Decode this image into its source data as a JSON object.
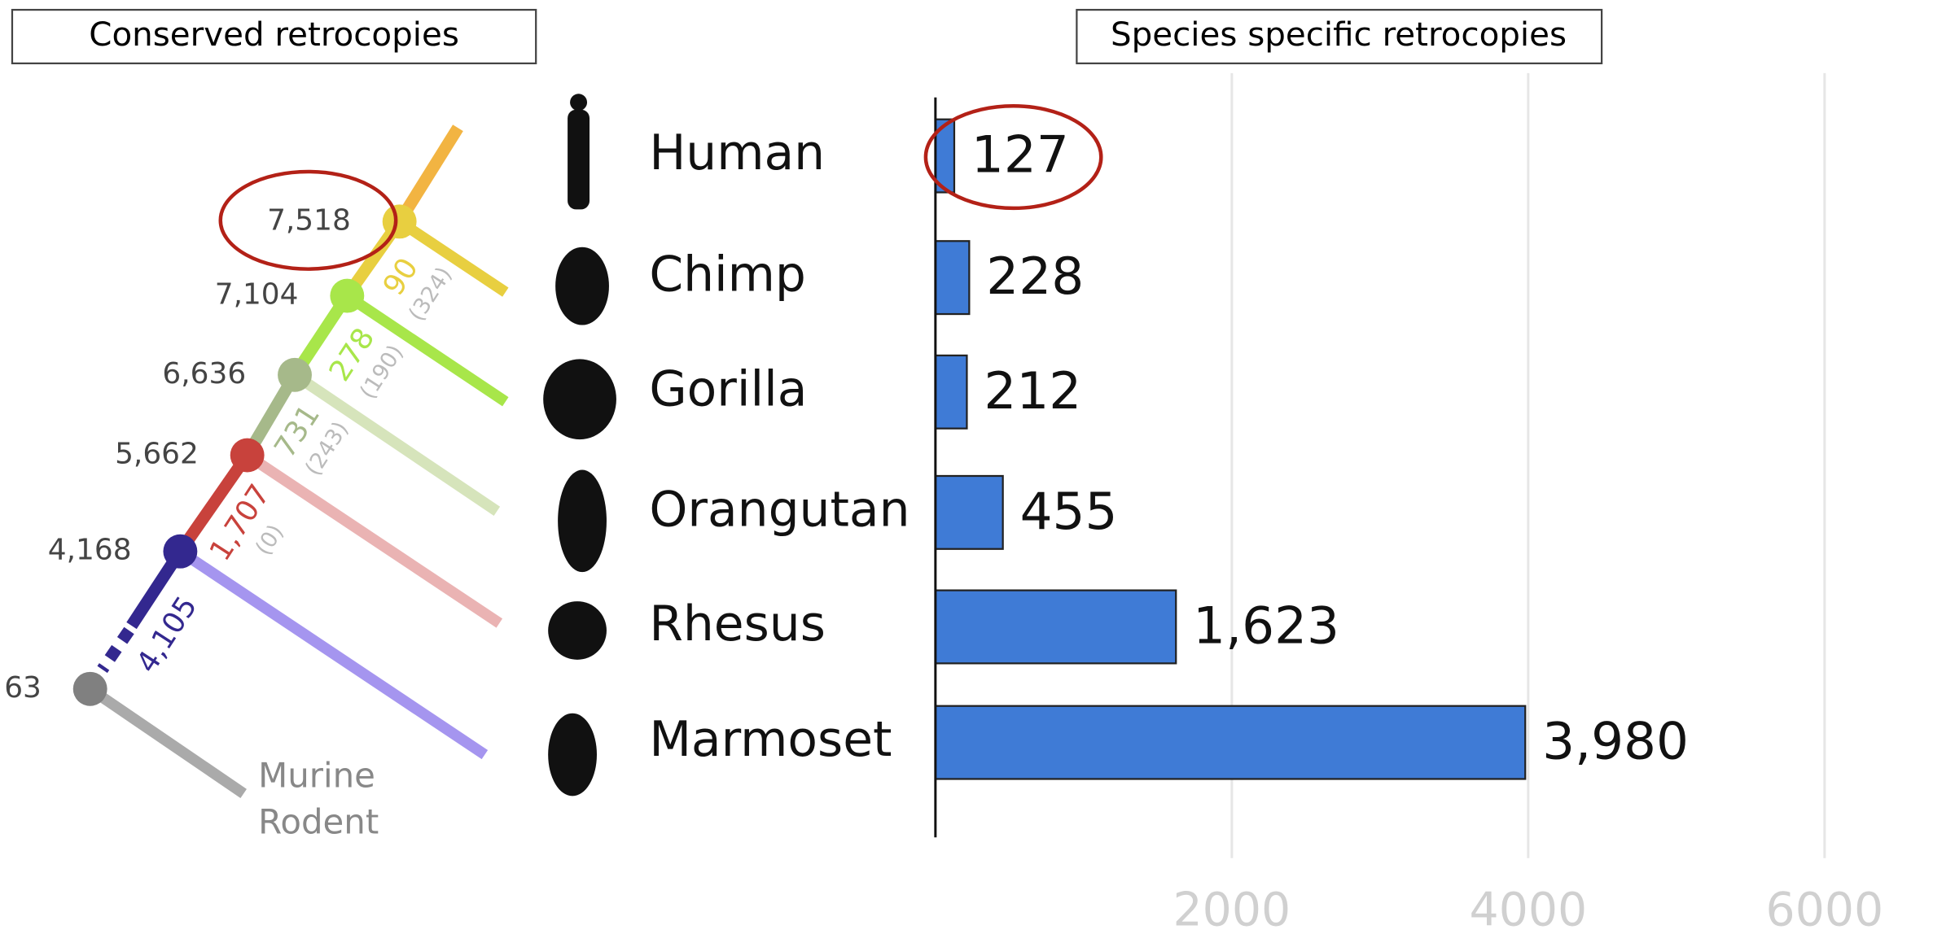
{
  "chart_data": {
    "type": "bar",
    "orientation": "horizontal",
    "title": "Species specific retrocopies",
    "categories": [
      "Human",
      "Chimp",
      "Gorilla",
      "Orangutan",
      "Rhesus",
      "Marmoset"
    ],
    "values": [
      127,
      228,
      212,
      455,
      1623,
      3980
    ],
    "value_labels": [
      "127",
      "228",
      "212",
      "455",
      "1,623",
      "3,980"
    ],
    "color": "#3f7bd6",
    "xlim": [
      0,
      6000
    ],
    "xticks": [
      2000,
      4000,
      6000
    ],
    "grid": true
  },
  "tree": {
    "title": "Conserved retrocopies",
    "nodes": [
      {
        "label": "7,518",
        "color": "#e8cf40"
      },
      {
        "label": "7,104",
        "color": "#a8e64a"
      },
      {
        "label": "6,636",
        "color": "#a6b98a"
      },
      {
        "label": "5,662",
        "color": "#c8423c"
      },
      {
        "label": "4,168",
        "color": "#33288f"
      },
      {
        "label": "63",
        "color": "#808080"
      }
    ],
    "branches": [
      {
        "count": "90",
        "note": "(324)"
      },
      {
        "count": "278",
        "note": "(190)"
      },
      {
        "count": "731",
        "note": "(243)"
      },
      {
        "count": "1,707",
        "note": "(0)"
      },
      {
        "count": "4,105"
      }
    ],
    "outgroup": [
      "Murine",
      "Rodent"
    ]
  }
}
